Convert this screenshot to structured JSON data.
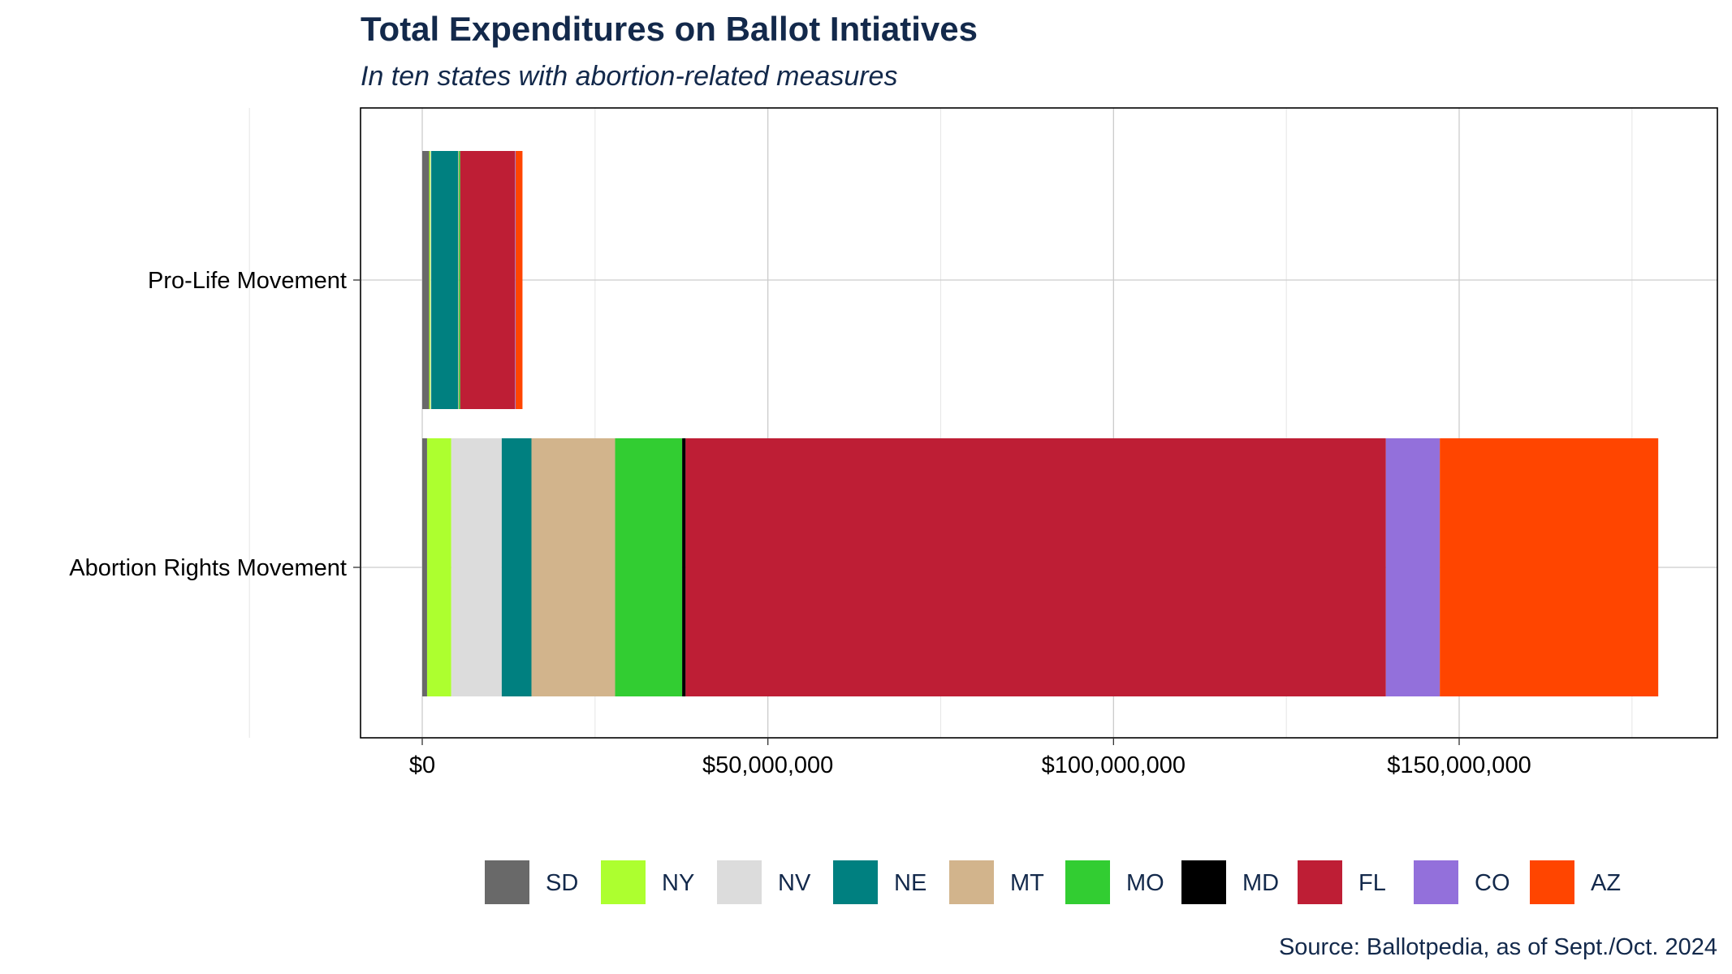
{
  "chart_data": {
    "type": "bar",
    "orientation": "horizontal",
    "stacked": true,
    "title": "Total Expenditures on Ballot Intiatives",
    "subtitle": "In ten states with abortion-related measures",
    "caption": "Source: Ballotpedia, as of Sept./Oct. 2024",
    "xlabel": "",
    "ylabel": "",
    "categories": [
      "Pro-Life Movement",
      "Abortion Rights Movement"
    ],
    "x_ticks": [
      0,
      50000000,
      100000000,
      150000000
    ],
    "x_tick_labels": [
      "$0",
      "$50,000,000",
      "$100,000,000",
      "$150,000,000"
    ],
    "xlim": [
      -9000000,
      187000000
    ],
    "grid": true,
    "legend_position": "bottom",
    "series": [
      {
        "name": "SD",
        "color": "#696969",
        "values": [
          1000000,
          700000
        ]
      },
      {
        "name": "NY",
        "color": "#adff2f",
        "values": [
          200000,
          3500000
        ]
      },
      {
        "name": "NV",
        "color": "#dcdcdc",
        "values": [
          100000,
          7300000
        ]
      },
      {
        "name": "NE",
        "color": "#008080",
        "values": [
          3900000,
          4300000
        ]
      },
      {
        "name": "MT",
        "color": "#d2b48c",
        "values": [
          100000,
          12100000
        ]
      },
      {
        "name": "MO",
        "color": "#32cd32",
        "values": [
          200000,
          9700000
        ]
      },
      {
        "name": "MD",
        "color": "#000000",
        "values": [
          0,
          500000
        ]
      },
      {
        "name": "FL",
        "color": "#be1e35",
        "values": [
          7900000,
          101300000
        ]
      },
      {
        "name": "CO",
        "color": "#9370db",
        "values": [
          100000,
          7800000
        ]
      },
      {
        "name": "AZ",
        "color": "#ff4500",
        "values": [
          1000000,
          31600000
        ]
      }
    ]
  }
}
